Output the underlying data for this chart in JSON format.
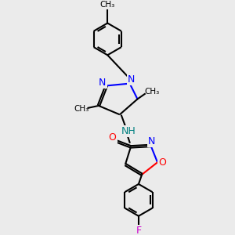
{
  "bg_color": "#ebebeb",
  "bond_color": "#000000",
  "N_color": "#0000ff",
  "O_color": "#ff0000",
  "F_color": "#cc00cc",
  "NH_color": "#008080",
  "lw": 1.5,
  "figsize": [
    3.0,
    3.0
  ],
  "dpi": 100,
  "xlim": [
    0,
    10
  ],
  "ylim": [
    0,
    10
  ]
}
